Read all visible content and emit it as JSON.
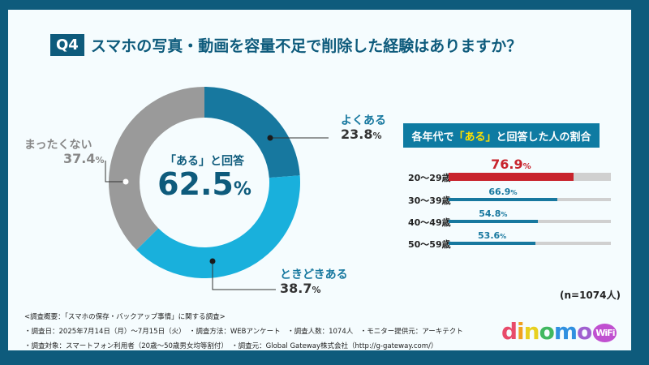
{
  "title": {
    "q": "Q4",
    "text": "スマホの写真・動画を容量不足で削除した経験はありますか？"
  },
  "donut": {
    "center_label": "「ある」と回答",
    "center_value": "62.5",
    "center_unit": "%"
  },
  "chart_data": [
    {
      "type": "pie",
      "donut": true,
      "categories": [
        "よくある",
        "ときどきある",
        "まったくない"
      ],
      "values": [
        23.8,
        38.7,
        37.4
      ],
      "colors": [
        "#17789f",
        "#19b0dc",
        "#9a9a9a"
      ],
      "labels": [
        "23.8",
        "38.7",
        "37.4"
      ],
      "unit": "%"
    },
    {
      "type": "bar",
      "orientation": "horizontal",
      "title": "各年代で「ある」と回答した人の割合",
      "title_parts": [
        "各年代で",
        "「ある」",
        "と回答した人の割合"
      ],
      "categories": [
        "20〜29歳",
        "30〜39歳",
        "40〜49歳",
        "50〜59歳"
      ],
      "values": [
        76.9,
        66.9,
        54.8,
        53.6
      ],
      "labels": [
        "76.9",
        "66.9",
        "54.8",
        "53.6"
      ],
      "unit": "%",
      "xlim": [
        0,
        100
      ],
      "colors": [
        "#c8232c",
        "#17789f",
        "#17789f",
        "#17789f"
      ],
      "track_color": "#d0d0d0"
    }
  ],
  "n_label": "(n=1074人)",
  "footer": [
    "<調査概要：「スマホの保存・バックアップ事情」に関する調査>",
    "・調査日：2025年7月14日（月）〜7月15日（火）　・調査方法：WEBアンケート　・調査人数：1074人　・モニター提供元：アーキテクト",
    "・調査対象：スマートフォン利用者（20歳〜50歳男女均等割付）　・調査元：Global Gateway株式会社（http://g-gateway.com/）"
  ],
  "logo": {
    "text": "dinomo",
    "badge": "WiFi"
  }
}
